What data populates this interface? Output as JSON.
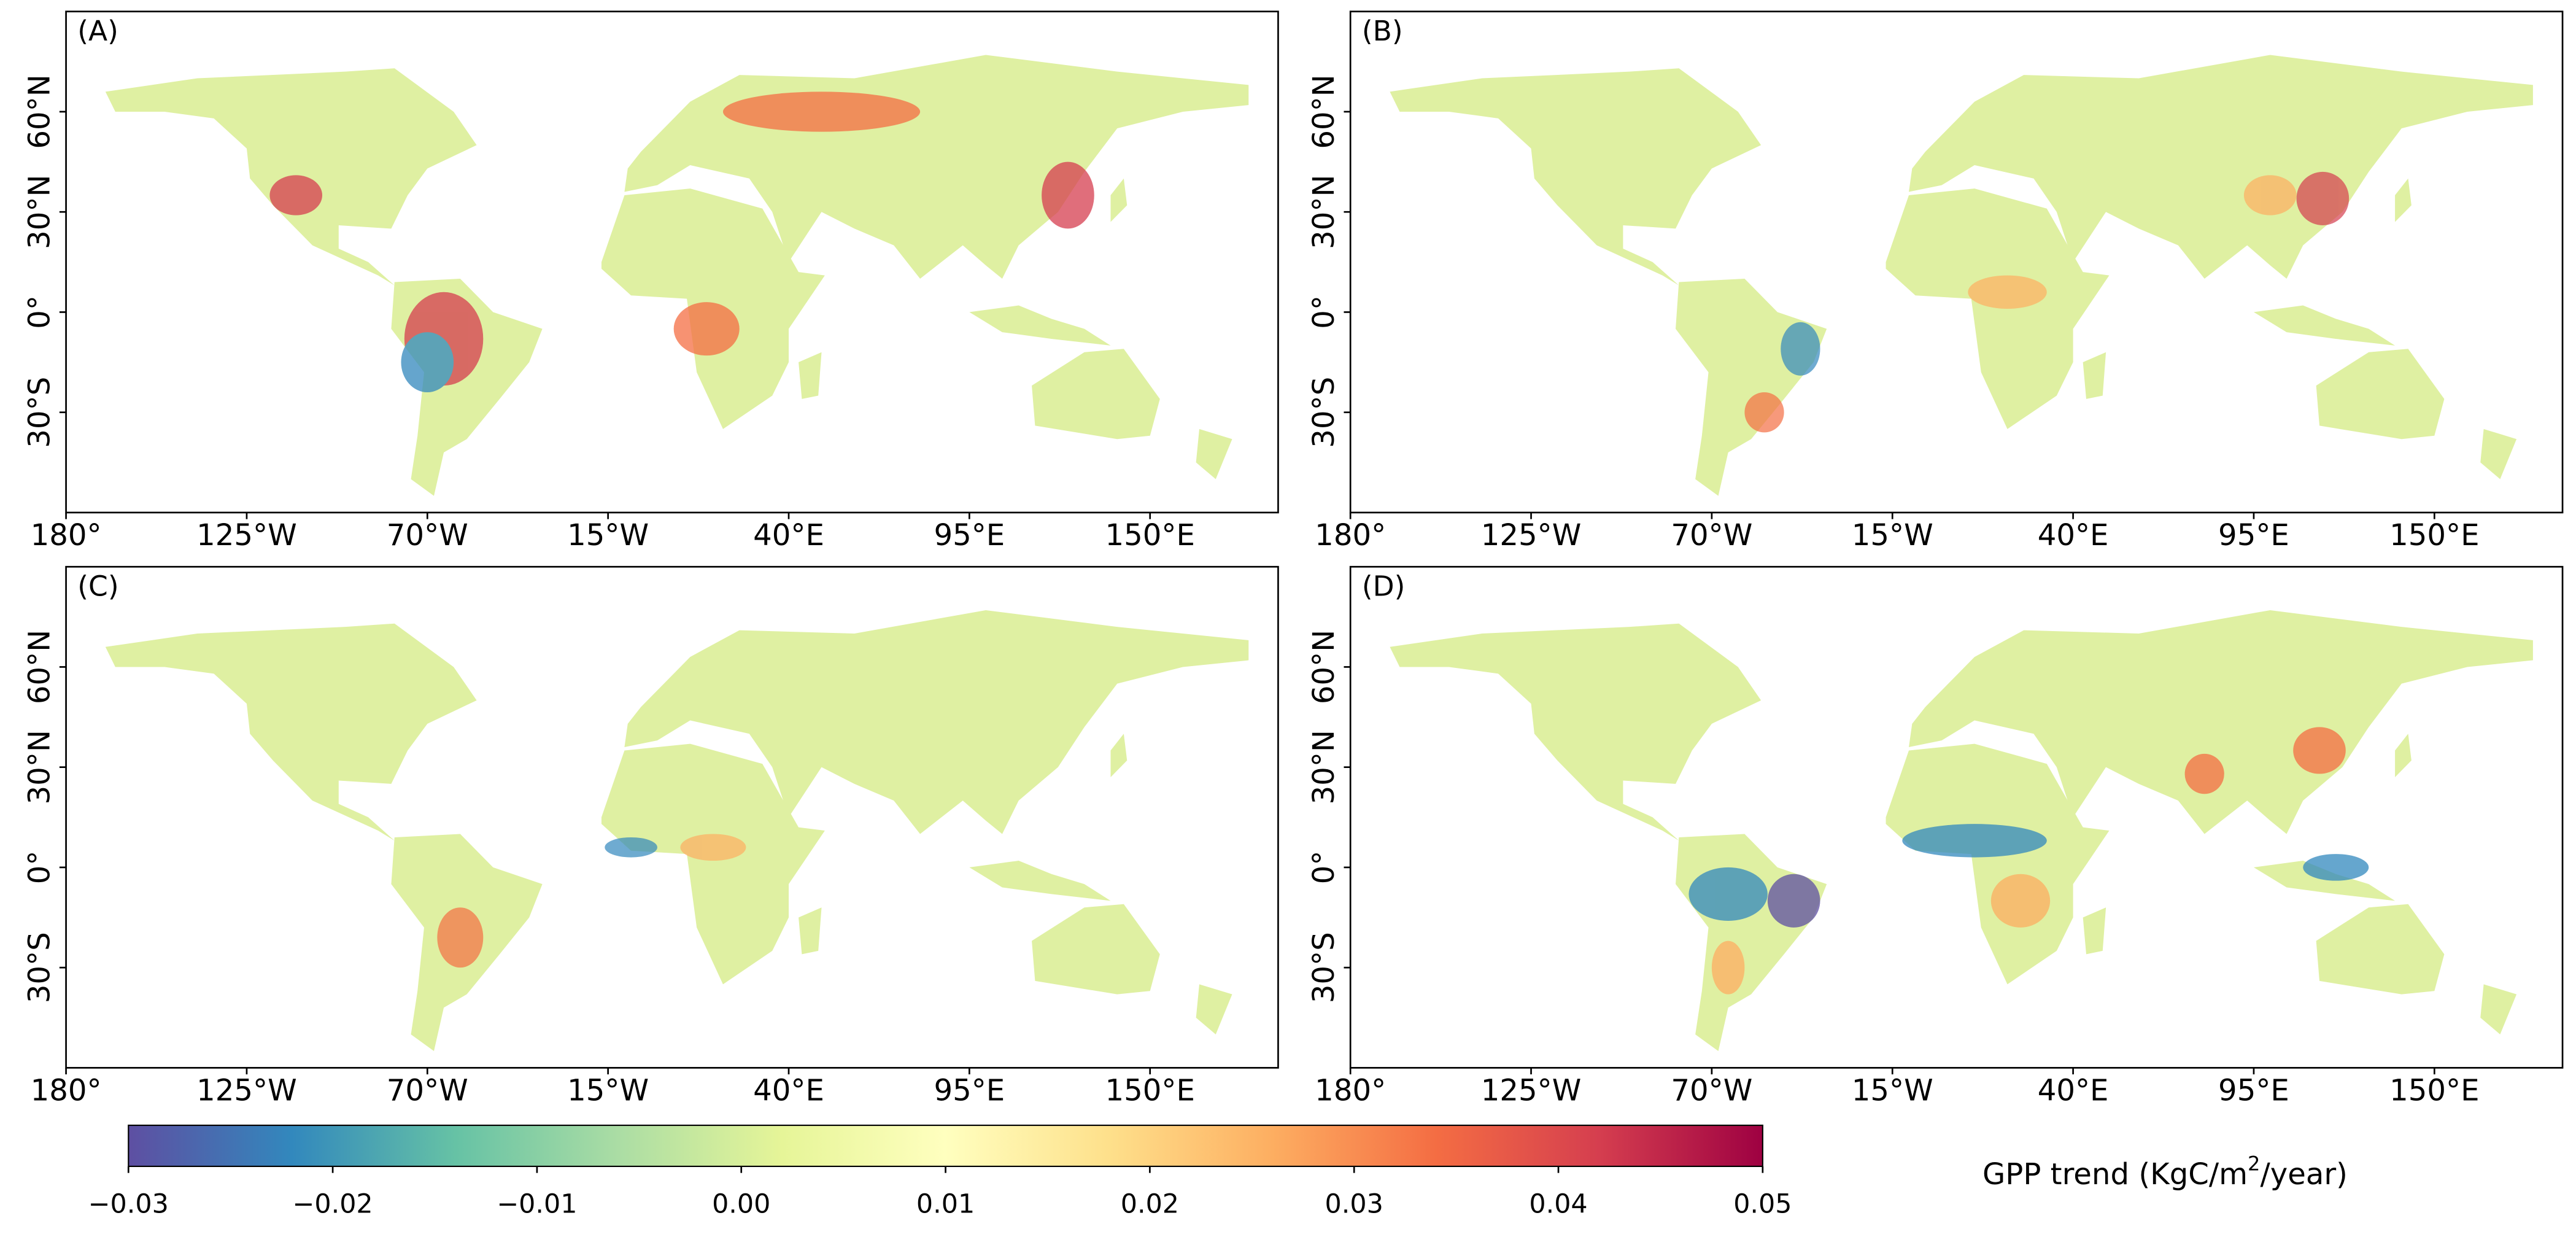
{
  "panels": [
    {
      "label": "(A)"
    },
    {
      "label": "(B)"
    },
    {
      "label": "(C)"
    },
    {
      "label": "(D)"
    }
  ],
  "lonlim": [
    -180,
    189
  ],
  "latlim": [
    -60,
    90
  ],
  "lon_ticks": [
    {
      "value": -180,
      "label": "180°"
    },
    {
      "value": -125,
      "label": "125°W"
    },
    {
      "value": -70,
      "label": "70°W"
    },
    {
      "value": -15,
      "label": "15°W"
    },
    {
      "value": 40,
      "label": "40°E"
    },
    {
      "value": 95,
      "label": "95°E"
    },
    {
      "value": 150,
      "label": "150°E"
    }
  ],
  "lat_ticks": [
    {
      "value": 60,
      "label": "60°N"
    },
    {
      "value": 30,
      "label": "30°N"
    },
    {
      "value": 0,
      "label": "0°"
    },
    {
      "value": -30,
      "label": "30°S"
    }
  ],
  "colorbar": {
    "label": {
      "text": "GPP trend (KgC/m",
      "sup": "2",
      "tail": "/year)"
    },
    "lim": [
      -0.03,
      0.05
    ],
    "ticks": [
      {
        "value": -0.03,
        "label": "−0.03"
      },
      {
        "value": -0.02,
        "label": "−0.02"
      },
      {
        "value": -0.01,
        "label": "−0.01"
      },
      {
        "value": 0,
        "label": "0.00"
      },
      0.01,
      0.02,
      0.03,
      0.04,
      0.05
    ],
    "colormap": [
      "#5e4fa2",
      "#3288bd",
      "#66c2a5",
      "#abdda4",
      "#e6f598",
      "#ffffbf",
      "#fee08b",
      "#fdae61",
      "#f46d43",
      "#d53e4f",
      "#9e0142"
    ]
  }
}
